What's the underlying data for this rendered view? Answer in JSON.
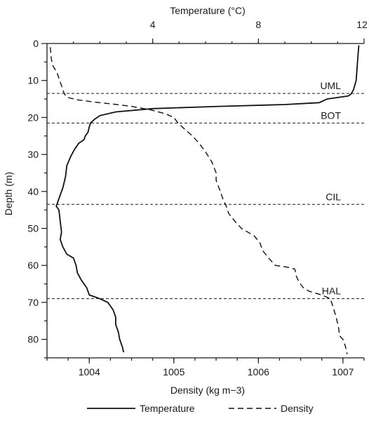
{
  "chart_data": {
    "type": "line",
    "top_axis": {
      "label": "Temperature (°C)",
      "range": [
        0,
        12
      ],
      "tick_labels": [
        "4",
        "8",
        "12"
      ]
    },
    "bottom_axis": {
      "label": "Density (kg m−3)",
      "range": [
        1003.5,
        1007.25
      ],
      "tick_labels": [
        "1004",
        "1005",
        "1006",
        "1007"
      ]
    },
    "left_axis": {
      "label": "Depth (m)",
      "range": [
        0,
        85
      ],
      "inverted": true,
      "tick_labels": [
        "0",
        "10",
        "20",
        "30",
        "40",
        "50",
        "60",
        "70",
        "80"
      ]
    },
    "layers": [
      {
        "name": "UML",
        "depth": 13.5
      },
      {
        "name": "BOT",
        "depth": 21.5
      },
      {
        "name": "CIL",
        "depth": 43.5
      },
      {
        "name": "HAL",
        "depth": 69
      }
    ],
    "series": [
      {
        "name": "Temperature",
        "axis": "top",
        "line_style": "solid",
        "points": [
          [
            11.8,
            0.5
          ],
          [
            11.75,
            5
          ],
          [
            11.7,
            10
          ],
          [
            11.6,
            12.5
          ],
          [
            11.5,
            13.7
          ],
          [
            11.4,
            14.2
          ],
          [
            10.6,
            15
          ],
          [
            10.3,
            16
          ],
          [
            9.0,
            16.5
          ],
          [
            6.5,
            17
          ],
          [
            4.0,
            17.6
          ],
          [
            2.6,
            18.5
          ],
          [
            2.0,
            19.5
          ],
          [
            1.8,
            20.5
          ],
          [
            1.65,
            21.5
          ],
          [
            1.6,
            22.5
          ],
          [
            1.55,
            24
          ],
          [
            1.45,
            25
          ],
          [
            1.4,
            26
          ],
          [
            1.2,
            27
          ],
          [
            1.05,
            28.5
          ],
          [
            0.9,
            30.5
          ],
          [
            0.75,
            33
          ],
          [
            0.7,
            36
          ],
          [
            0.6,
            39
          ],
          [
            0.5,
            41
          ],
          [
            0.4,
            43
          ],
          [
            0.35,
            44
          ],
          [
            0.45,
            45
          ],
          [
            0.5,
            48
          ],
          [
            0.55,
            51
          ],
          [
            0.5,
            53
          ],
          [
            0.6,
            55
          ],
          [
            0.75,
            57
          ],
          [
            1.0,
            58
          ],
          [
            1.1,
            60
          ],
          [
            1.15,
            62
          ],
          [
            1.3,
            64
          ],
          [
            1.5,
            66
          ],
          [
            1.6,
            68
          ],
          [
            2.0,
            69
          ],
          [
            2.3,
            70
          ],
          [
            2.5,
            72
          ],
          [
            2.6,
            74
          ],
          [
            2.6,
            76
          ],
          [
            2.7,
            78
          ],
          [
            2.75,
            80
          ],
          [
            2.85,
            82
          ],
          [
            2.9,
            83.5
          ]
        ]
      },
      {
        "name": "Density",
        "axis": "bottom",
        "line_style": "dashed",
        "points": [
          [
            1003.54,
            1
          ],
          [
            1003.55,
            4
          ],
          [
            1003.57,
            6
          ],
          [
            1003.62,
            8
          ],
          [
            1003.65,
            10
          ],
          [
            1003.68,
            12
          ],
          [
            1003.7,
            13.3
          ],
          [
            1003.73,
            14.5
          ],
          [
            1003.85,
            15.2
          ],
          [
            1004.05,
            15.8
          ],
          [
            1004.25,
            16.3
          ],
          [
            1004.5,
            17
          ],
          [
            1004.7,
            17.8
          ],
          [
            1004.9,
            19
          ],
          [
            1005.0,
            20
          ],
          [
            1005.05,
            21.5
          ],
          [
            1005.12,
            23
          ],
          [
            1005.22,
            25
          ],
          [
            1005.3,
            27
          ],
          [
            1005.38,
            29.5
          ],
          [
            1005.45,
            32
          ],
          [
            1005.5,
            35
          ],
          [
            1005.5,
            37
          ],
          [
            1005.55,
            40
          ],
          [
            1005.58,
            42
          ],
          [
            1005.62,
            44
          ],
          [
            1005.65,
            46
          ],
          [
            1005.72,
            48
          ],
          [
            1005.8,
            50
          ],
          [
            1005.95,
            52
          ],
          [
            1006.02,
            54
          ],
          [
            1006.05,
            56
          ],
          [
            1006.12,
            58
          ],
          [
            1006.2,
            60
          ],
          [
            1006.35,
            60.5
          ],
          [
            1006.43,
            61
          ],
          [
            1006.45,
            63
          ],
          [
            1006.48,
            64.5
          ],
          [
            1006.53,
            66
          ],
          [
            1006.6,
            67
          ],
          [
            1006.75,
            68
          ],
          [
            1006.85,
            69
          ],
          [
            1006.88,
            71
          ],
          [
            1006.92,
            74
          ],
          [
            1006.95,
            77
          ],
          [
            1006.96,
            79
          ],
          [
            1007.0,
            80
          ],
          [
            1007.03,
            82
          ],
          [
            1007.05,
            84
          ]
        ]
      }
    ],
    "legend": {
      "placement": "bottom",
      "entries": [
        "Temperature",
        "Density"
      ]
    }
  }
}
